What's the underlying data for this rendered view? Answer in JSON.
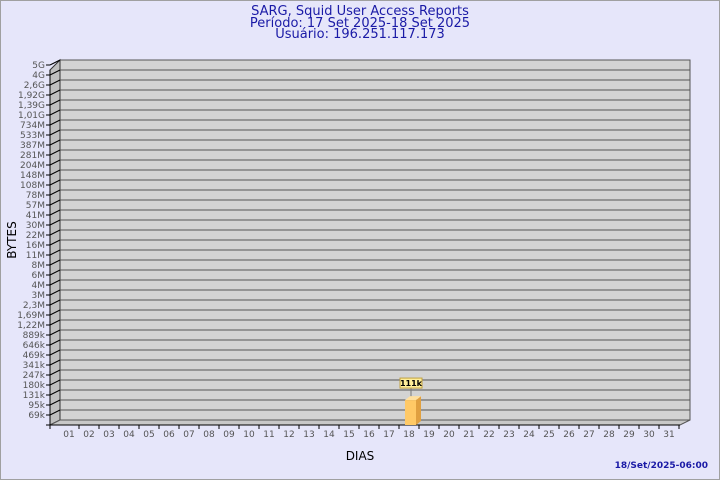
{
  "header": {
    "title": "SARG, Squid User Access Reports",
    "period": "Período: 17 Set 2025-18 Set 2025",
    "user": "Usuário: 196.251.117.173"
  },
  "footnote": "18/Set/2025-06:00",
  "colors": {
    "background": "#e6e6fa",
    "plot": "#d3d3d3",
    "bar": "#ffc966",
    "bar_side": "#e0a040",
    "title": "#1a1aa6"
  },
  "chart_data": {
    "type": "bar",
    "title": "SARG, Squid User Access Reports",
    "xlabel": "DIAS",
    "ylabel": "BYTES",
    "y_scale": "log",
    "y_ticks": [
      "5G",
      "4G",
      "2,6G",
      "1,92G",
      "1,39G",
      "1,01G",
      "734M",
      "533M",
      "387M",
      "281M",
      "204M",
      "148M",
      "108M",
      "78M",
      "57M",
      "41M",
      "30M",
      "22M",
      "16M",
      "11M",
      "8M",
      "6M",
      "4M",
      "3M",
      "2,3M",
      "1,69M",
      "1,22M",
      "889k",
      "646k",
      "469k",
      "341k",
      "247k",
      "180k",
      "131k",
      "95k",
      "69k"
    ],
    "categories": [
      "01",
      "02",
      "03",
      "04",
      "05",
      "06",
      "07",
      "08",
      "09",
      "10",
      "11",
      "12",
      "13",
      "14",
      "15",
      "16",
      "17",
      "18",
      "19",
      "20",
      "21",
      "22",
      "23",
      "24",
      "25",
      "26",
      "27",
      "28",
      "29",
      "30",
      "31"
    ],
    "values": [
      0,
      0,
      0,
      0,
      0,
      0,
      0,
      0,
      0,
      0,
      0,
      0,
      0,
      0,
      0,
      0,
      0,
      111000,
      0,
      0,
      0,
      0,
      0,
      0,
      0,
      0,
      0,
      0,
      0,
      0,
      0
    ],
    "data_labels": {
      "18": "111k"
    },
    "grid": true
  }
}
